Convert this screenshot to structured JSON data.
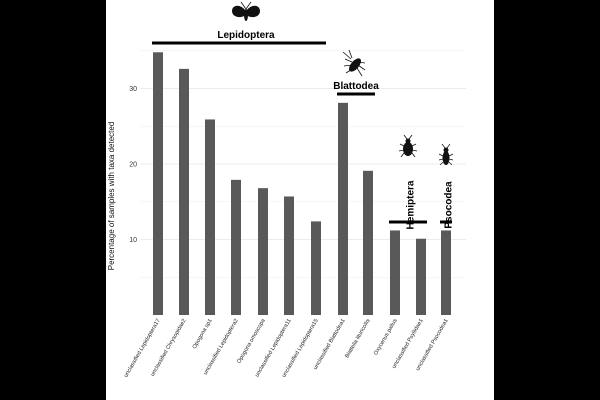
{
  "chart_data": {
    "type": "bar",
    "ylabel": "Percentage of samples with taxa detected",
    "xlabel": "",
    "ylim": [
      0,
      36
    ],
    "yticks": [
      10,
      20,
      30
    ],
    "grid": "horizontal",
    "bar_color": "#595959",
    "categories": [
      "unclassified Lepidoptera17",
      "unclassified Chrysopidae2",
      "Opogona sp1",
      "unclassified Lepidoptera2",
      "Opogona omoscopa",
      "unclassified Lepidoptera11",
      "unclassified Lepidoptera15",
      "unclassified Blattodea1",
      "Blattella lituricollis",
      "Oxycenus pallus",
      "unclassified Psyllidae1",
      "unclassified Psocodea1"
    ],
    "values": [
      34.8,
      32.6,
      25.9,
      17.9,
      16.8,
      15.7,
      12.4,
      28.1,
      19.1,
      11.2,
      10.1,
      11.2
    ],
    "groups": [
      {
        "name": "Lepidoptera",
        "from": 0,
        "to": 6,
        "icon": "moth-icon"
      },
      {
        "name": "Blattodea",
        "from": 7,
        "to": 8,
        "icon": "cockroach-icon"
      },
      {
        "name": "Hemiptera",
        "from": 9,
        "to": 10,
        "icon": "bug-icon"
      },
      {
        "name": "Psocodea",
        "from": 11,
        "to": 11,
        "icon": "booklouse-icon"
      }
    ]
  }
}
